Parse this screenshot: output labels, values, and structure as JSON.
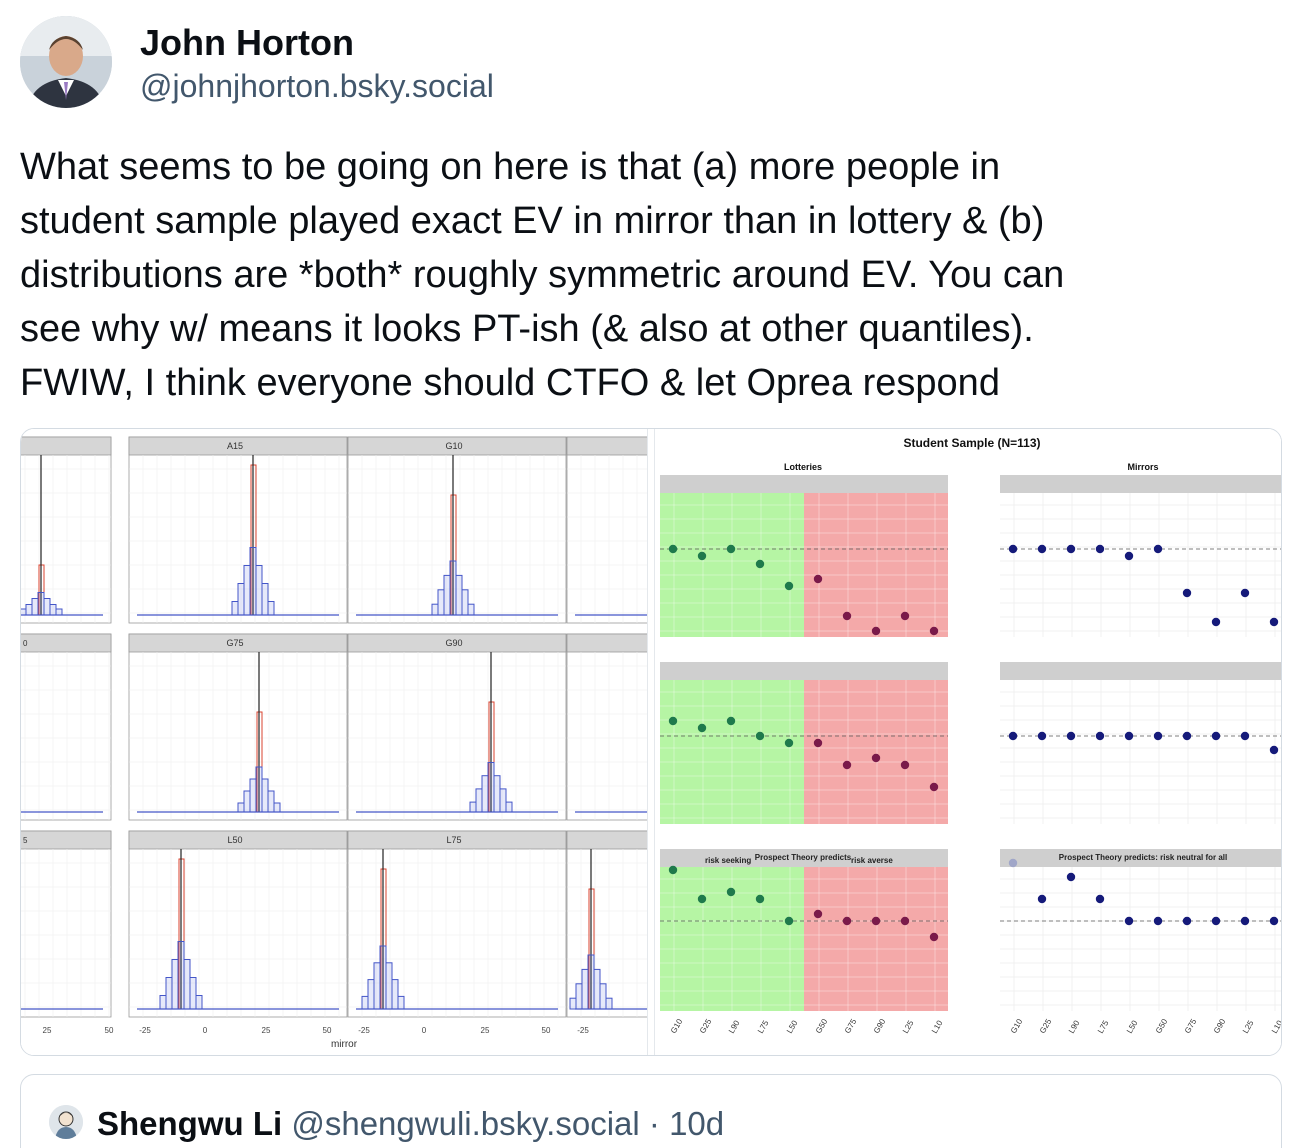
{
  "post": {
    "author": {
      "display_name": "John Horton",
      "handle": "@johnjhorton.bsky.social",
      "avatar_icon": "user-avatar-photo"
    },
    "text_lines": [
      "What seems to be going on here is that (a) more people in",
      "student sample played exact EV in mirror than in lottery & (b)",
      "distributions are *both* roughly symmetric around EV.  You can",
      "see why w/ means it looks PT-ish (& also at other quantiles).",
      "FWIW, I think everyone should CTFO & let Oprea respond"
    ]
  },
  "image_left": {
    "panel_titles": [
      "A15",
      "G10",
      "G75",
      "G90",
      "L50",
      "L75"
    ],
    "row2_left_label": "0",
    "row3_left_label": "5",
    "x_ticks_first": [
      "25",
      "50"
    ],
    "x_ticks_panel": [
      "-25",
      "0",
      "25",
      "50"
    ],
    "x_ticks_last": [
      "-25"
    ],
    "xlabel": "mirror"
  },
  "image_right": {
    "title": "Student Sample (N=113)",
    "facet_lotteries": "Lotteries",
    "facet_mirrors": "Mirrors",
    "strip_lotteries": "risk seeking",
    "strip_lotteries_mid": "Prospect Theory predicts",
    "strip_lotteries_right": "risk averse",
    "strip_mirrors": "Prospect Theory predicts: risk neutral for all",
    "x_categories": [
      "G10",
      "G25",
      "L90",
      "L75",
      "L50",
      "G50",
      "G75",
      "G90",
      "L25",
      "L10"
    ],
    "colors": {
      "green_region": "#b6f5a4",
      "red_region": "#f4a9a9",
      "green_dot": "#1f7a4c",
      "red_dot": "#7a1a4a",
      "navy_dot": "#151a7a"
    }
  },
  "quote": {
    "display_name": "Shengwu Li",
    "handle": "@shengwuli.bsky.social",
    "separator": "·",
    "time": "10d"
  }
}
